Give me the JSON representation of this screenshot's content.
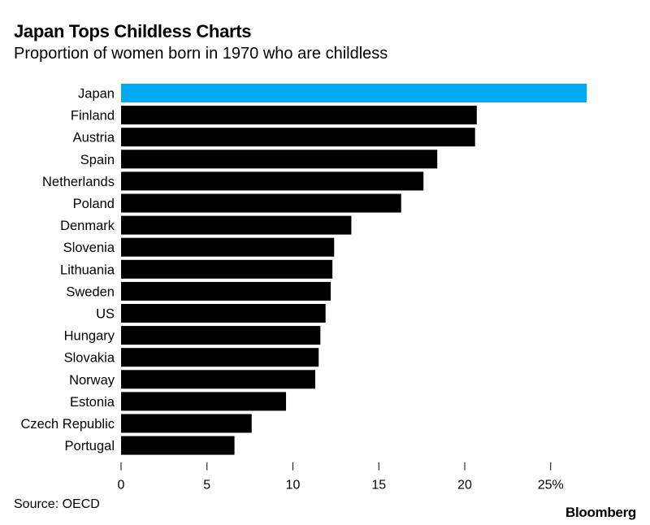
{
  "title": "Japan Tops Childless Charts",
  "subtitle": "Proportion of women born in 1970 who are childless",
  "source": "Source: OECD",
  "brand": "Bloomberg",
  "colors": {
    "highlight": "#00a9f4",
    "bar": "#000000",
    "text": "#000000"
  },
  "chart_data": {
    "type": "bar",
    "orientation": "horizontal",
    "categories": [
      "Japan",
      "Finland",
      "Austria",
      "Spain",
      "Netherlands",
      "Poland",
      "Denmark",
      "Slovenia",
      "Lithuania",
      "Sweden",
      "US",
      "Hungary",
      "Slovakia",
      "Norway",
      "Estonia",
      "Czech Republic",
      "Portugal"
    ],
    "values": [
      27.1,
      20.7,
      20.6,
      18.4,
      17.6,
      16.3,
      13.4,
      12.4,
      12.3,
      12.2,
      11.9,
      11.6,
      11.5,
      11.3,
      9.6,
      7.6,
      6.6
    ],
    "highlight": "Japan",
    "xlim": [
      0,
      27.5
    ],
    "xticks": [
      0,
      5,
      10,
      15,
      20,
      25
    ],
    "xtick_labels": [
      "0",
      "5",
      "10",
      "15",
      "20",
      "25%"
    ],
    "grid": false
  }
}
